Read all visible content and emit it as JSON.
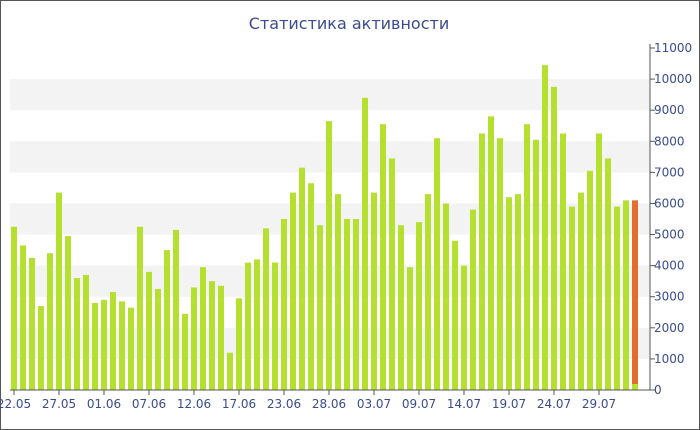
{
  "chart_data": {
    "type": "bar",
    "title": "Статистика активности",
    "xlabel": "",
    "ylabel": "",
    "ylim": [
      0,
      11000
    ],
    "yticks": [
      0,
      1000,
      2000,
      3000,
      4000,
      5000,
      6000,
      7000,
      8000,
      9000,
      10000,
      11000
    ],
    "y_axis_side": "right",
    "grid": "alternating horizontal bands",
    "x_tick_labels": [
      "22.05",
      "27.05",
      "01.06",
      "07.06",
      "12.06",
      "17.06",
      "23.06",
      "28.06",
      "03.07",
      "09.07",
      "14.07",
      "19.07",
      "24.07",
      "29.07"
    ],
    "x_tick_bar_index": [
      0,
      5,
      10,
      15,
      20,
      25,
      30,
      35,
      40,
      45,
      50,
      55,
      60,
      65
    ],
    "values": [
      5250,
      4650,
      4250,
      2700,
      4400,
      6350,
      4950,
      3600,
      3700,
      2800,
      2900,
      3150,
      2850,
      2650,
      5250,
      3800,
      3250,
      4500,
      5150,
      2450,
      3300,
      3950,
      3500,
      3350,
      1200,
      2950,
      4100,
      4200,
      5200,
      4100,
      5500,
      6350,
      7150,
      6650,
      5300,
      8650,
      6300,
      5500,
      5500,
      9400,
      6350,
      8550,
      7450,
      5300,
      3950,
      5400,
      6300,
      8100,
      6000,
      4800,
      4000,
      5800,
      8250,
      8800,
      8100,
      6200,
      6300,
      8550,
      8050,
      10450,
      9750,
      8250,
      5900,
      6350,
      7050,
      8250,
      7450,
      5900,
      6100,
      6100
    ],
    "highlight_index": 69,
    "colors": {
      "bar": "#b5e02f",
      "highlight": "#e36c2f",
      "highlight_base": "#b5e02f",
      "band": "#f3f3f3",
      "axis": "#555555",
      "text": "#3b4c8c"
    }
  }
}
